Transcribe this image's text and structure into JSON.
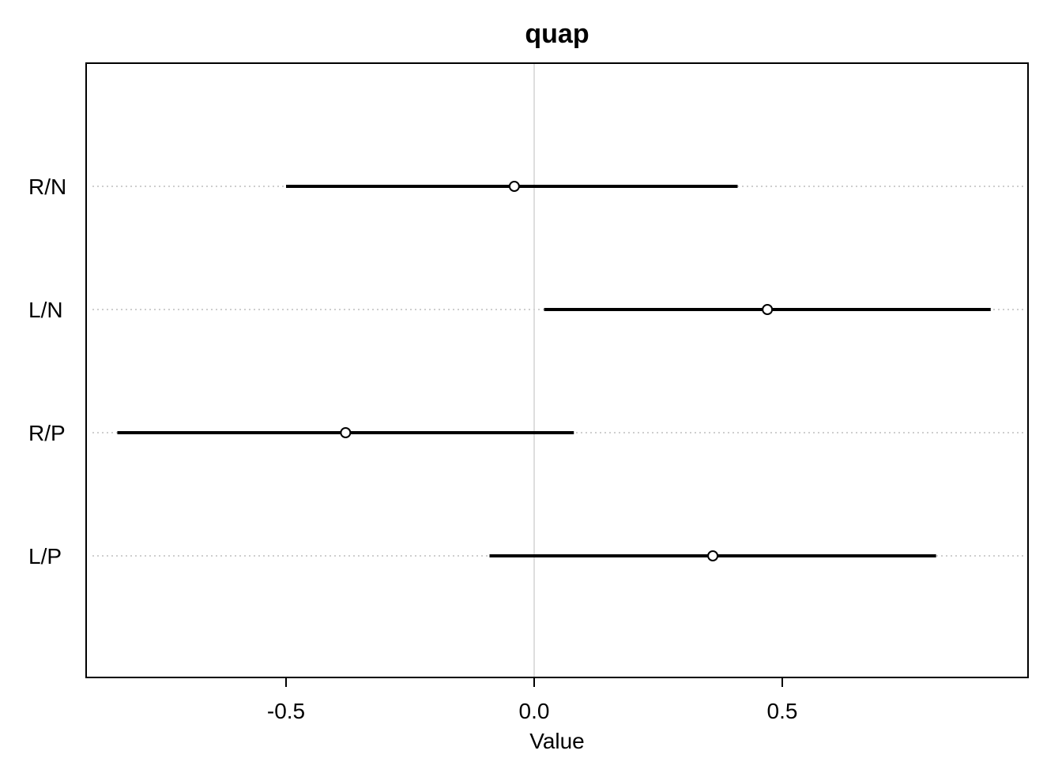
{
  "chart_data": {
    "type": "interval",
    "title": "quap",
    "xlabel": "Value",
    "ylabel": "",
    "xlim": [
      -0.9,
      1.0
    ],
    "xticks": [
      -0.5,
      0.0,
      0.5
    ],
    "xtick_labels": [
      "-0.5",
      "0.0",
      "0.5"
    ],
    "reference_line_x": 0.0,
    "grid": "dotted horizontal guides at each parameter",
    "parameters": [
      {
        "label": "R/N",
        "mean": -0.04,
        "lower": -0.5,
        "upper": 0.41
      },
      {
        "label": "L/N",
        "mean": 0.47,
        "lower": 0.02,
        "upper": 0.92
      },
      {
        "label": "R/P",
        "mean": -0.38,
        "lower": -0.84,
        "upper": 0.08
      },
      {
        "label": "L/P",
        "mean": 0.36,
        "lower": -0.09,
        "upper": 0.81
      }
    ]
  },
  "colors": {
    "interval": "#000000",
    "point": "#000000",
    "zero_line": "#d3d3d3",
    "guide": "#bebebe",
    "frame": "#000000"
  }
}
